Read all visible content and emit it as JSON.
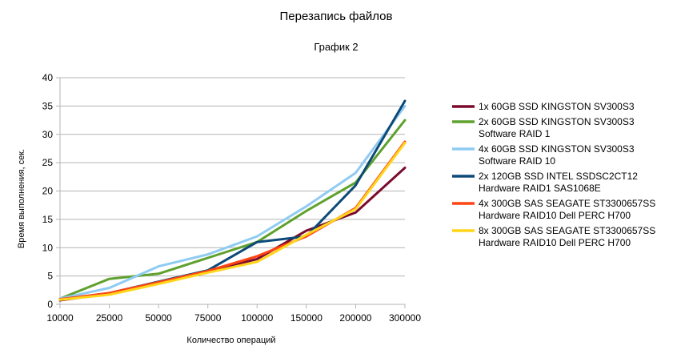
{
  "chart_data": {
    "type": "line",
    "title": "Перезапись файлов",
    "subtitle": "График 2",
    "xlabel": "Количество операций",
    "ylabel": "Время выполнения, сек.",
    "categories": [
      "10000",
      "25000",
      "50000",
      "75000",
      "100000",
      "150000",
      "200000",
      "300000"
    ],
    "ylim": [
      0,
      40
    ],
    "yticks": [
      0,
      5,
      10,
      15,
      20,
      25,
      30,
      35,
      40
    ],
    "grid": {
      "horizontal": true,
      "vertical": false
    },
    "legend_position": "right",
    "series": [
      {
        "name_lines": [
          "1x 60GB SSD KINGSTON SV300S3"
        ],
        "color": "#7b0b2c",
        "values": [
          0.7,
          1.9,
          3.8,
          5.8,
          8.0,
          13.0,
          16.2,
          24.1
        ]
      },
      {
        "name_lines": [
          "2x 60GB SSD KINGSTON SV300S3",
          "Software RAID 1"
        ],
        "color": "#5fa12e",
        "values": [
          1.0,
          4.5,
          5.4,
          8.2,
          11.0,
          16.5,
          21.5,
          32.5
        ]
      },
      {
        "name_lines": [
          "4x 60GB SSD KINGSTON SV300S3",
          "Software RAID 10"
        ],
        "color": "#8fcbf2",
        "values": [
          1.0,
          2.9,
          6.7,
          8.8,
          12.0,
          17.3,
          23.2,
          35.0
        ]
      },
      {
        "name_lines": [
          "2x 120GB SSD INTEL SSDSC2CT12",
          "Hardware RAID1 SAS1068E"
        ],
        "color": "#0c4a78",
        "values": [
          0.8,
          2.0,
          4.0,
          6.0,
          11.0,
          12.0,
          21.0,
          35.9
        ]
      },
      {
        "name_lines": [
          "4x 300GB SAS SEAGATE ST3300657SS",
          "Hardware RAID10 Dell PERC H700"
        ],
        "color": "#ff4513",
        "values": [
          0.9,
          2.0,
          3.9,
          5.9,
          8.5,
          12.0,
          17.0,
          28.7
        ]
      },
      {
        "name_lines": [
          "8x 300GB SAS SEAGATE ST3300657SS",
          "Hardware RAID10 Dell PERC H700"
        ],
        "color": "#ffd51c",
        "values": [
          0.8,
          1.7,
          3.6,
          5.6,
          7.5,
          12.3,
          16.8,
          28.5
        ]
      }
    ]
  }
}
